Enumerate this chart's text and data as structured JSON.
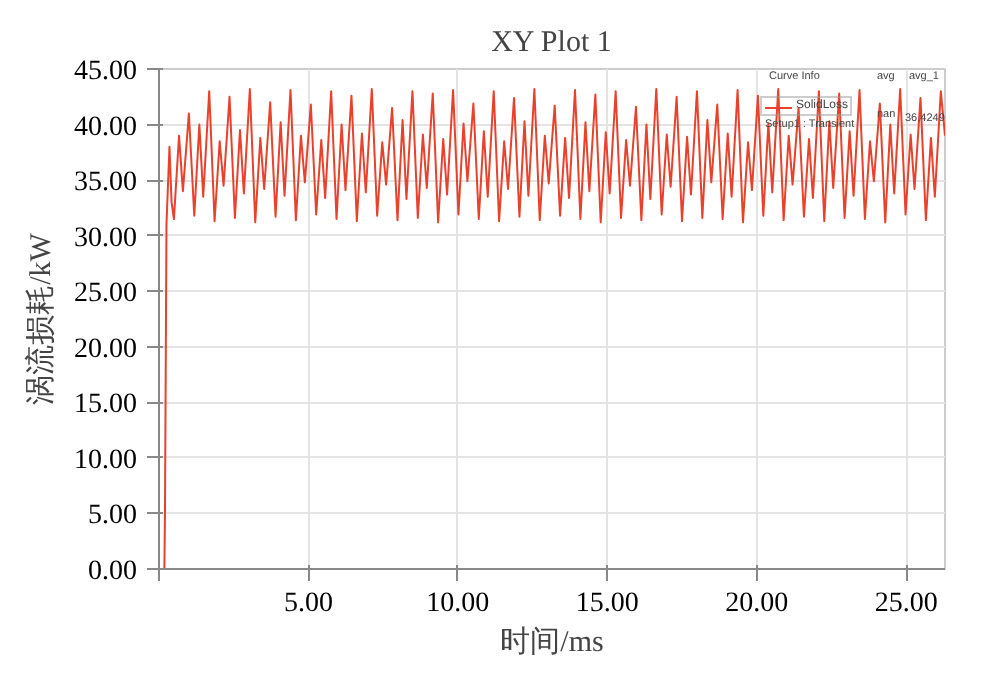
{
  "chart_data": {
    "type": "line",
    "title": "XY Plot 1",
    "xlabel": "时间/ms",
    "ylabel": "涡流损耗/kW",
    "x": [
      0.18,
      0.2,
      0.25,
      0.35,
      0.42,
      0.5,
      0.67,
      0.8,
      1.0,
      1.18,
      1.35,
      1.48,
      1.68,
      1.86,
      2.03,
      2.16,
      2.36,
      2.54,
      2.71,
      2.84,
      3.04,
      3.22,
      3.39,
      3.52,
      3.72,
      3.9,
      4.07,
      4.2,
      4.4,
      4.58,
      4.75,
      4.88,
      5.08,
      5.26,
      5.43,
      5.56,
      5.76,
      5.94,
      6.11,
      6.24,
      6.44,
      6.62,
      6.79,
      6.92,
      7.12,
      7.3,
      7.47,
      7.6,
      7.8,
      7.98,
      8.15,
      8.28,
      8.48,
      8.66,
      8.83,
      8.96,
      9.16,
      9.34,
      9.51,
      9.64,
      9.84,
      10.02,
      10.19,
      10.32,
      10.52,
      10.7,
      10.87,
      11.0,
      11.2,
      11.38,
      11.55,
      11.68,
      11.88,
      12.06,
      12.23,
      12.36,
      12.56,
      12.74,
      12.91,
      13.04,
      13.24,
      13.42,
      13.59,
      13.72,
      13.92,
      14.1,
      14.27,
      14.4,
      14.6,
      14.78,
      14.95,
      15.08,
      15.28,
      15.46,
      15.63,
      15.76,
      15.96,
      16.14,
      16.31,
      16.44,
      16.64,
      16.82,
      16.99,
      17.12,
      17.32,
      17.5,
      17.67,
      17.8,
      18.0,
      18.18,
      18.35,
      18.48,
      18.68,
      18.86,
      19.03,
      19.16,
      19.36,
      19.54,
      19.71,
      19.84,
      20.04,
      20.22,
      20.39,
      20.52,
      20.72,
      20.9,
      21.07,
      21.2,
      21.4,
      21.58,
      21.75,
      21.88,
      22.08,
      22.26,
      22.43,
      22.56,
      22.76,
      22.94,
      23.11,
      23.24,
      23.44,
      23.62,
      23.79,
      23.92,
      24.12,
      24.3,
      24.47,
      24.6,
      24.8,
      24.98,
      25.15,
      25.28,
      25.48,
      25.66,
      25.83,
      25.96,
      26.16,
      26.3
    ],
    "series": [
      {
        "name": "SolidLoss",
        "color": "#e8412c",
        "values": [
          0,
          5,
          31,
          38,
          33,
          31.5,
          39,
          34,
          41,
          31.8,
          40,
          33.5,
          43,
          31.3,
          38.5,
          34.5,
          42.5,
          31.6,
          39.5,
          33.8,
          43.2,
          31.2,
          38.8,
          34.2,
          42,
          31.7,
          40.2,
          33.6,
          43.1,
          31.4,
          39,
          34.8,
          41.8,
          31.9,
          38.6,
          33.4,
          43,
          31.5,
          40,
          34.1,
          42.6,
          31.3,
          39.2,
          33.9,
          43.2,
          31.8,
          38.4,
          34.6,
          41.5,
          31.4,
          40.4,
          33.3,
          43,
          31.6,
          39.1,
          34.3,
          42.8,
          31.2,
          38.7,
          33.7,
          43.1,
          31.9,
          40.1,
          34.9,
          41.9,
          31.5,
          39.4,
          33.5,
          43,
          31.3,
          38.5,
          34.2,
          42.4,
          31.7,
          40.3,
          33.6,
          43.2,
          31.4,
          39,
          34.7,
          41.7,
          31.8,
          38.8,
          33.4,
          43.1,
          31.5,
          40.2,
          34,
          42.7,
          31.2,
          39.3,
          33.8,
          43,
          31.6,
          38.6,
          34.5,
          41.6,
          31.4,
          40,
          33.3,
          43.2,
          31.9,
          39.1,
          34.4,
          42.5,
          31.3,
          38.9,
          33.7,
          43,
          31.6,
          40.4,
          34.8,
          41.8,
          31.5,
          39.2,
          33.5,
          43.1,
          31.2,
          38.4,
          34.1,
          42.6,
          31.8,
          40.1,
          33.9,
          43.2,
          31.4,
          39,
          34.6,
          41.5,
          31.7,
          38.7,
          33.4,
          43,
          31.3,
          40.3,
          34.3,
          42.8,
          31.6,
          39.4,
          33.6,
          43.1,
          31.5,
          38.5,
          34.9,
          41.9,
          31.2,
          40,
          33.8,
          43.2,
          31.9,
          39.1,
          34.2,
          42.4,
          31.4,
          38.8,
          33.5,
          43,
          39
        ]
      }
    ],
    "annotations": [
      "Curve Info",
      "Setup1 : Transient",
      "avg",
      "nan",
      "avg_1",
      "36.4249"
    ],
    "xlim": [
      0,
      26.3
    ],
    "ylim": [
      0,
      45
    ],
    "xticks": [
      {
        "value": 0,
        "label": null
      },
      {
        "value": 5,
        "label": "5.00"
      },
      {
        "value": 10,
        "label": "10.00"
      },
      {
        "value": 15,
        "label": "15.00"
      },
      {
        "value": 20,
        "label": "20.00"
      },
      {
        "value": 25,
        "label": "25.00"
      }
    ],
    "yticks": [
      {
        "value": 0,
        "label": "0.00"
      },
      {
        "value": 5,
        "label": "5.00"
      },
      {
        "value": 10,
        "label": "10.00"
      },
      {
        "value": 15,
        "label": "15.00"
      },
      {
        "value": 20,
        "label": "20.00"
      },
      {
        "value": 25,
        "label": "25.00"
      },
      {
        "value": 30,
        "label": "30.00"
      },
      {
        "value": 35,
        "label": "35.00"
      },
      {
        "value": 40,
        "label": "40.00"
      },
      {
        "value": 45,
        "label": "45.00"
      }
    ],
    "grid": true,
    "legend": "top right"
  }
}
